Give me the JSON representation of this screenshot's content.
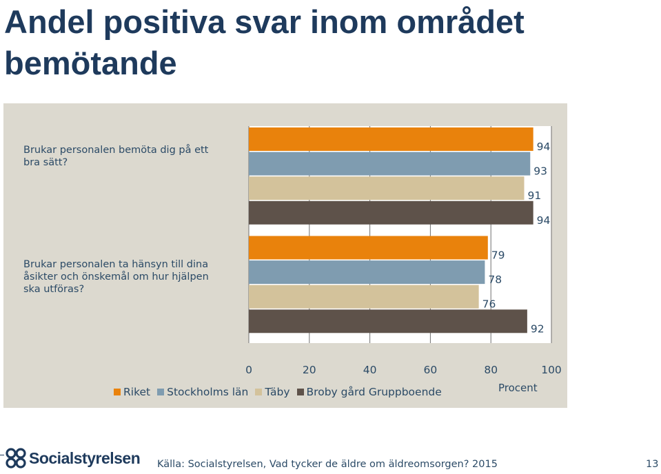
{
  "title": "Andel positiva svar inom området bemötande",
  "chart_data": {
    "type": "bar",
    "orientation": "horizontal",
    "categories": [
      "Brukar personalen bemöta dig på ett bra sätt?",
      "Brukar personalen ta hänsyn till dina åsikter och önskemål om hur hjälpen ska utföras?"
    ],
    "series": [
      {
        "name": "Riket",
        "color": "#e9820c",
        "values": [
          94,
          79
        ]
      },
      {
        "name": "Stockholms län",
        "color": "#7f9cb0",
        "values": [
          93,
          78
        ]
      },
      {
        "name": "Täby",
        "color": "#d3c29b",
        "values": [
          91,
          76
        ]
      },
      {
        "name": "Broby gård Gruppboende",
        "color": "#5e524a",
        "values": [
          94,
          92
        ]
      }
    ],
    "xlim": [
      0,
      100
    ],
    "xticks": [
      "0",
      "20",
      "40",
      "60",
      "80",
      "100"
    ],
    "xlabel": "Procent",
    "legend_position": "bottom"
  },
  "footer": {
    "logo_text": "Socialstyrelsen",
    "source": "Källa: Socialstyrelsen, Vad tycker de äldre om äldreomsorgen? 2015",
    "page_number": "13"
  }
}
